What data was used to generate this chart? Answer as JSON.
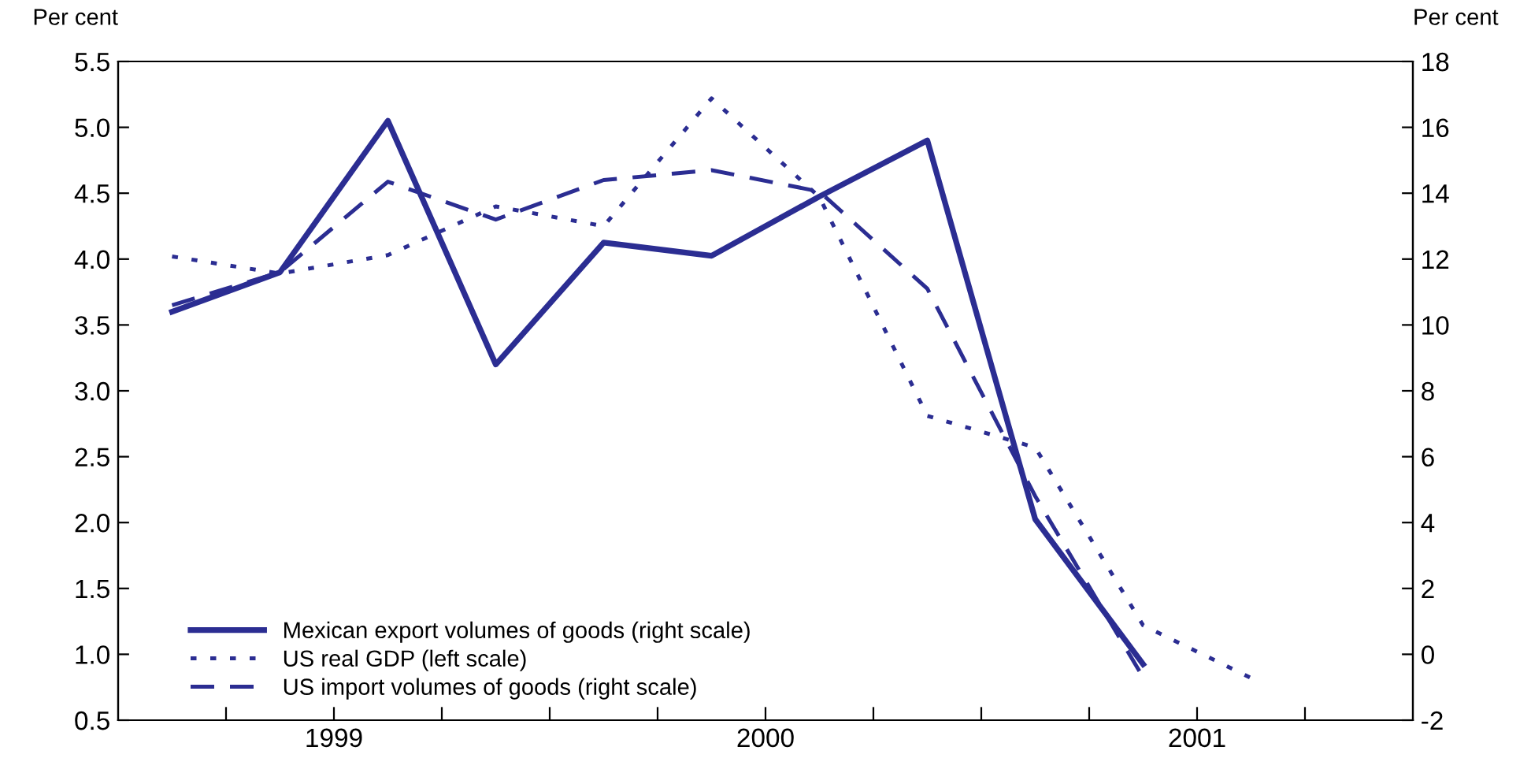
{
  "chart_data": {
    "type": "line",
    "ylabel": "Per cent",
    "y2label": "Per cent",
    "x": [
      1999.125,
      1999.375,
      1999.625,
      1999.875,
      2000.125,
      2000.375,
      2000.625,
      2000.875,
      2001.125,
      2001.375,
      2001.625
    ],
    "xlim": [
      1999,
      2002
    ],
    "xticks": [
      {
        "value": 1999.25,
        "label": null
      },
      {
        "value": 1999.5,
        "label": "1999"
      },
      {
        "value": 1999.75,
        "label": null
      },
      {
        "value": 2000,
        "label": null
      },
      {
        "value": 2000.25,
        "label": null
      },
      {
        "value": 2000.5,
        "label": "2000"
      },
      {
        "value": 2000.75,
        "label": null
      },
      {
        "value": 2001,
        "label": null
      },
      {
        "value": 2001.25,
        "label": null
      },
      {
        "value": 2001.5,
        "label": "2001"
      },
      {
        "value": 2001.75,
        "label": null
      }
    ],
    "ylim": [
      0.5,
      5.5
    ],
    "yticks": [
      {
        "value": 0.5,
        "label": "0.5"
      },
      {
        "value": 1.0,
        "label": "1.0"
      },
      {
        "value": 1.5,
        "label": "1.5"
      },
      {
        "value": 2.0,
        "label": "2.0"
      },
      {
        "value": 2.5,
        "label": "2.5"
      },
      {
        "value": 3.0,
        "label": "3.0"
      },
      {
        "value": 3.5,
        "label": "3.5"
      },
      {
        "value": 4.0,
        "label": "4.0"
      },
      {
        "value": 4.5,
        "label": "4.5"
      },
      {
        "value": 5.0,
        "label": "5.0"
      },
      {
        "value": 5.5,
        "label": "5.5"
      }
    ],
    "y2lim": [
      -2,
      18
    ],
    "y2ticks": [
      -2,
      0,
      2,
      4,
      6,
      8,
      10,
      12,
      14,
      16,
      18
    ],
    "grid": false,
    "legend": "bottom left",
    "series": [
      {
        "name": "Mexican export volumes of goods (right scale)",
        "color": "#2b2d92",
        "axis": "y2",
        "line_style": "solid",
        "values": [
          10.4,
          11.6,
          16.2,
          8.8,
          12.5,
          12.1,
          13.9,
          15.6,
          4.1,
          -0.3,
          null
        ]
      },
      {
        "name": "US real GDP (left scale)",
        "color": "#2b2d92",
        "axis": "y",
        "line_style": "dotted",
        "values": [
          4.02,
          3.89,
          4.03,
          4.4,
          4.25,
          5.22,
          4.47,
          2.81,
          2.57,
          1.22,
          0.82
        ]
      },
      {
        "name": "US import volumes of goods (right scale)",
        "color": "#2b2d92",
        "axis": "y2",
        "line_style": "dashed",
        "values": [
          10.6,
          11.6,
          14.35,
          13.2,
          14.4,
          14.7,
          14.05,
          11.1,
          4.8,
          -0.7,
          null
        ]
      }
    ]
  }
}
